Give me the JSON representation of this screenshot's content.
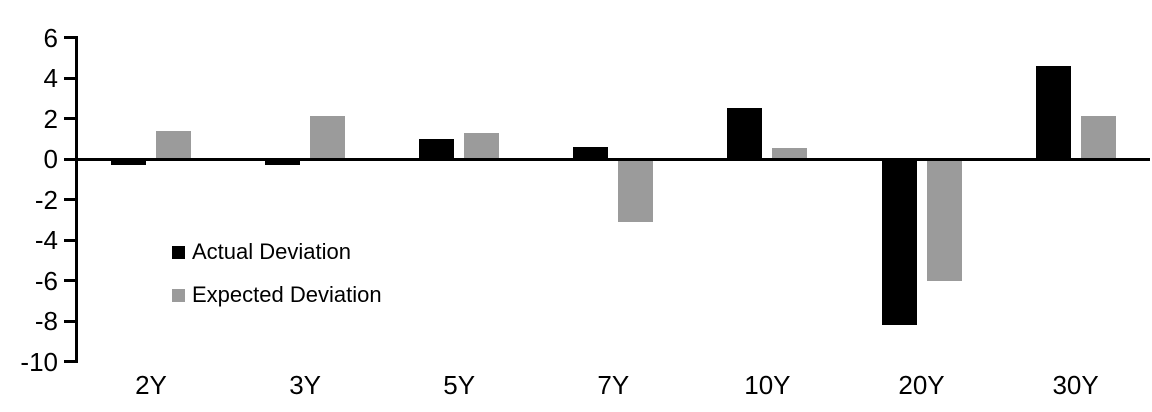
{
  "chart_data": {
    "type": "bar",
    "categories": [
      "2Y",
      "3Y",
      "5Y",
      "7Y",
      "10Y",
      "20Y",
      "30Y"
    ],
    "series": [
      {
        "name": "Actual Deviation",
        "color": "#000000",
        "values": [
          -0.3,
          -0.3,
          1.0,
          0.6,
          2.5,
          -8.2,
          4.6
        ]
      },
      {
        "name": "Expected Deviation",
        "color": "#9B9B9B",
        "values": [
          1.4,
          2.1,
          1.3,
          -3.1,
          0.55,
          -6.0,
          2.1
        ]
      }
    ],
    "ylim": [
      -10,
      6
    ],
    "yticks": [
      6,
      4,
      2,
      0,
      -2,
      -4,
      -6,
      -8,
      -10
    ],
    "grid": false,
    "legend_position": "inside-left-middle",
    "axis_color": "#000000",
    "background_color": "#ffffff"
  }
}
